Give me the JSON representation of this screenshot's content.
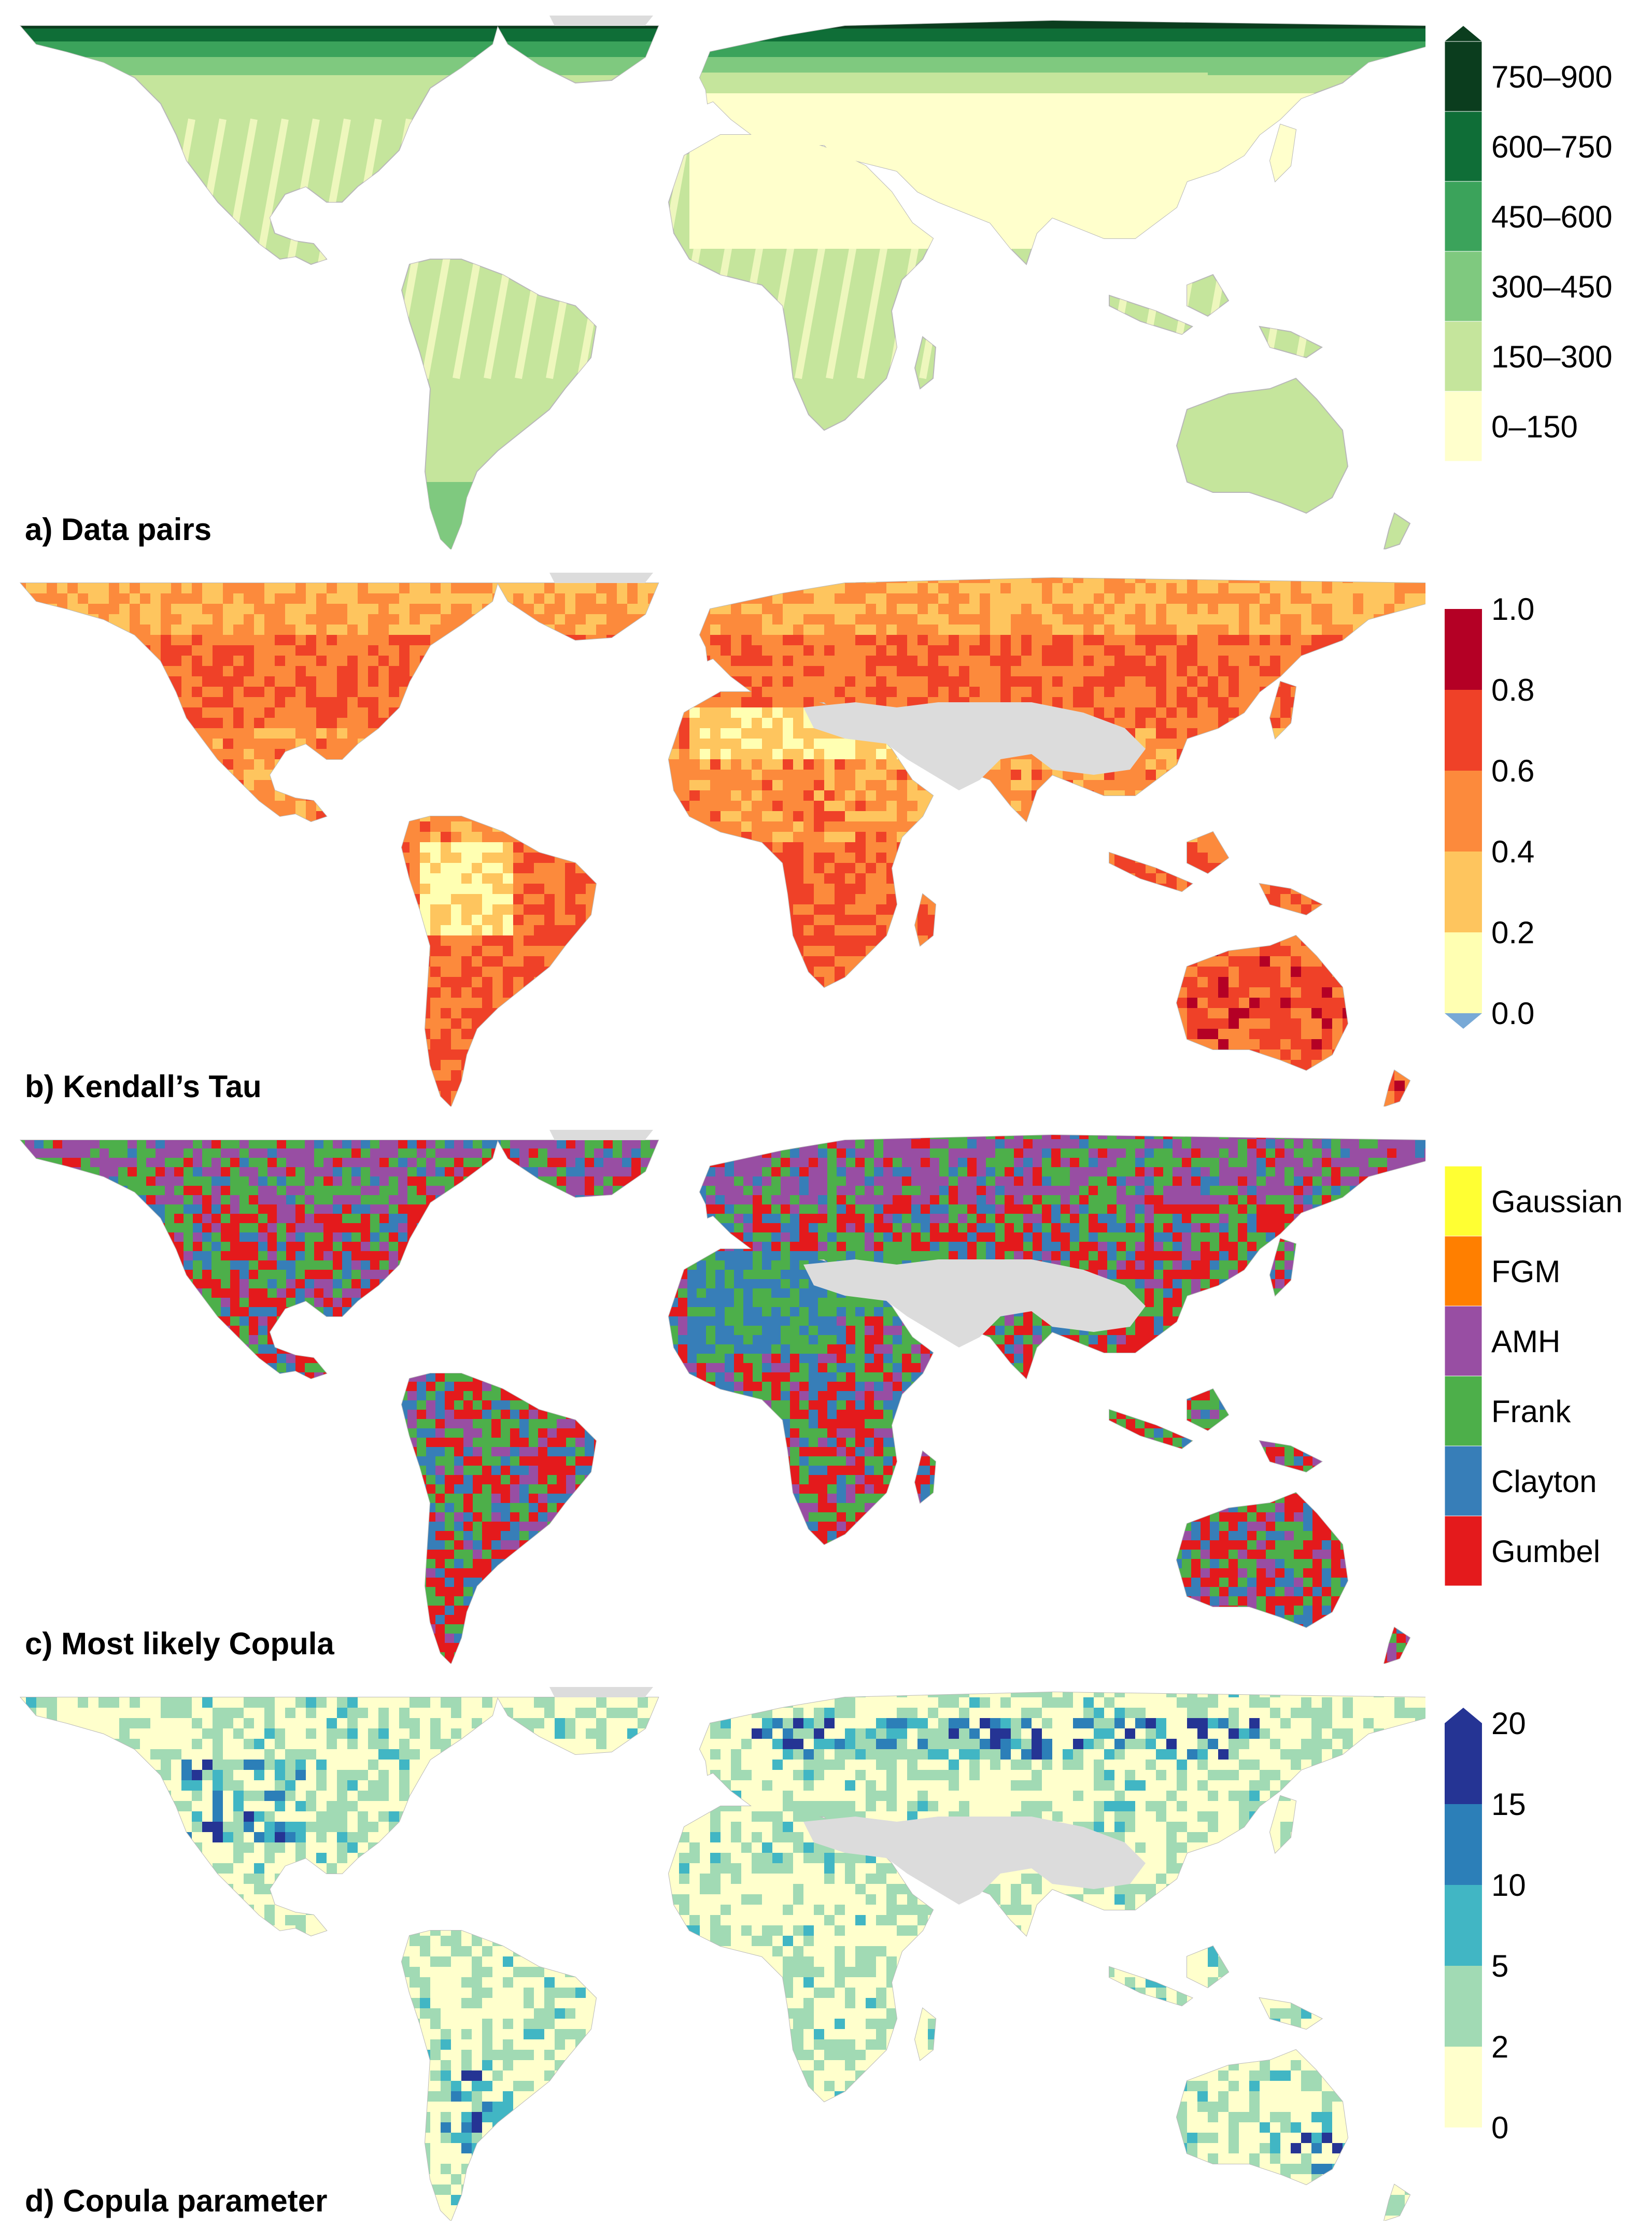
{
  "land_color": "#dcdcdc",
  "panels": [
    {
      "id": "a",
      "title": "a) Data pairs",
      "legend_type": "ranges",
      "legend_labels": [
        "750–900",
        "600–750",
        "450–600",
        "300–450",
        "150–300",
        "0–150"
      ],
      "legend_colors": [
        "#0b3d1e",
        "#0f6e37",
        "#3ba35b",
        "#7fc97f",
        "#c5e59c",
        "#ffffcc"
      ],
      "tip": "top",
      "scheme": "pairs"
    },
    {
      "id": "b",
      "title": "b) Kendall’s Tau",
      "legend_type": "breaks",
      "legend_labels": [
        "1.0",
        "0.8",
        "0.6",
        "0.4",
        "0.2",
        "0.0"
      ],
      "legend_colors": [
        "#b40025",
        "#ef4128",
        "#fc8a3c",
        "#fec55e",
        "#ffffb2"
      ],
      "tip_bottom_color": "#78a9d6",
      "scheme": "tau"
    },
    {
      "id": "c",
      "title": "c) Most likely Copula",
      "legend_type": "categories",
      "legend_labels": [
        "Gaussian",
        "FGM",
        "AMH",
        "Frank",
        "Clayton",
        "Gumbel"
      ],
      "legend_colors": [
        "#ffff33",
        "#ff7f00",
        "#984ea3",
        "#4daf4a",
        "#377eb8",
        "#e41a1c"
      ],
      "scheme": "copula"
    },
    {
      "id": "d",
      "title": "d) Copula parameter",
      "legend_type": "breaks",
      "legend_labels": [
        "20",
        "15",
        "10",
        "5",
        "2",
        "0"
      ],
      "legend_colors": [
        "#253494",
        "#2c7fb8",
        "#41b6c4",
        "#a1dab4",
        "#ffffcc"
      ],
      "tip_top_color": "#253494",
      "scheme": "param"
    }
  ]
}
